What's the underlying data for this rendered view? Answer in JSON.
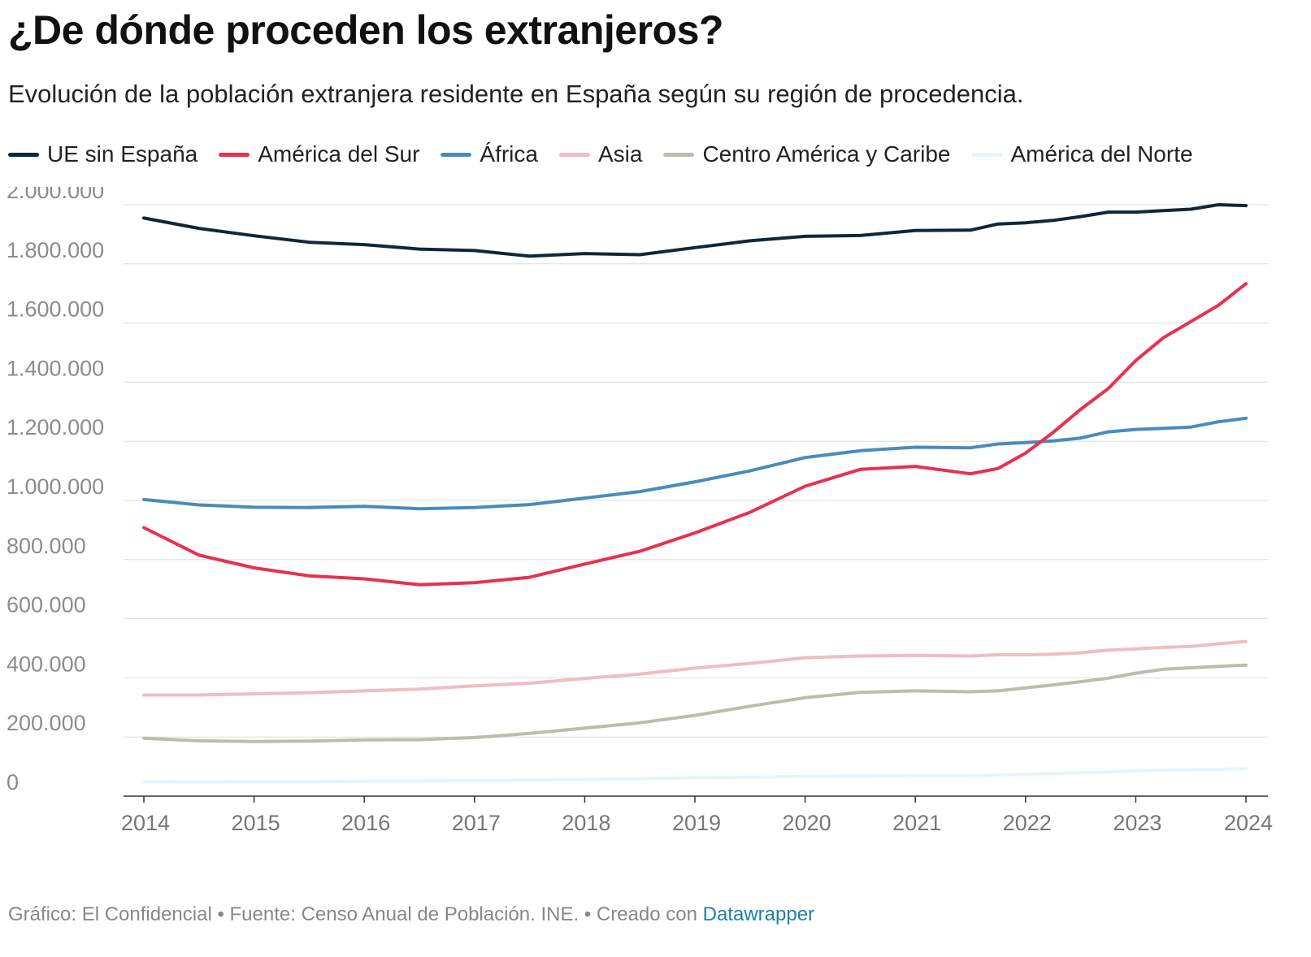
{
  "title": "¿De dónde proceden los extranjeros?",
  "subtitle": "Evolución de la población extranjera residente en España según su región de procedencia.",
  "footer": {
    "text": "Gráfico: El Confidencial • Fuente: Censo Anual de Población. INE. • Creado con ",
    "link": "Datawrapper"
  },
  "chart_data": {
    "type": "line",
    "title": "¿De dónde proceden los extranjeros?",
    "xlabel": "",
    "ylabel": "",
    "ylim": [
      0,
      2000000
    ],
    "xlim": [
      2014,
      2024
    ],
    "yticks": [
      0,
      200000,
      400000,
      600000,
      800000,
      1000000,
      1200000,
      1400000,
      1600000,
      1800000,
      2000000
    ],
    "ytick_labels": [
      "0",
      "200.000",
      "400.000",
      "600.000",
      "800.000",
      "1.000.000",
      "1.200.000",
      "1.400.000",
      "1.600.000",
      "1.800.000",
      "2.000.000"
    ],
    "xticks": [
      "2014",
      "2015",
      "2016",
      "2017",
      "2018",
      "2019",
      "2020",
      "2021",
      "2022",
      "2023",
      "2024"
    ],
    "grid": true,
    "legend_position": "top-left",
    "x": [
      2014,
      2014.5,
      2015,
      2015.5,
      2016,
      2016.5,
      2017,
      2017.5,
      2018,
      2018.5,
      2019,
      2019.5,
      2020,
      2020.5,
      2021,
      2021.5,
      2021.75,
      2022,
      2022.25,
      2022.5,
      2022.75,
      2023,
      2023.25,
      2023.5,
      2023.75,
      2024
    ],
    "series": [
      {
        "name": "UE sin España",
        "color": "#0d2838",
        "values": [
          1955000,
          1920000,
          1895000,
          1873000,
          1865000,
          1850000,
          1845000,
          1826000,
          1835000,
          1831000,
          1855000,
          1878000,
          1893000,
          1896000,
          1913000,
          1914000,
          1935000,
          1939000,
          1947000,
          1960000,
          1975000,
          1975000,
          1980000,
          1985000,
          2000000,
          1997000
        ]
      },
      {
        "name": "América del Sur",
        "color": "#e8304f",
        "values": [
          908000,
          815000,
          772000,
          745000,
          735000,
          715000,
          722000,
          740000,
          785000,
          828000,
          890000,
          960000,
          1048000,
          1105000,
          1115000,
          1090000,
          1108000,
          1160000,
          1230000,
          1308000,
          1378000,
          1473000,
          1550000,
          1605000,
          1660000,
          1733000
        ]
      },
      {
        "name": "África",
        "color": "#4a8bbd",
        "values": [
          1003000,
          985000,
          977000,
          976000,
          980000,
          972000,
          976000,
          986000,
          1008000,
          1030000,
          1063000,
          1100000,
          1145000,
          1168000,
          1180000,
          1178000,
          1191000,
          1196000,
          1201000,
          1211000,
          1232000,
          1240000,
          1244000,
          1248000,
          1266000,
          1278000
        ]
      },
      {
        "name": "Asia",
        "color": "#f0bcc5",
        "values": [
          342000,
          342000,
          346000,
          350000,
          356000,
          362000,
          373000,
          382000,
          398000,
          413000,
          433000,
          449000,
          468000,
          474000,
          476000,
          474000,
          478000,
          478000,
          480000,
          485000,
          494000,
          498000,
          503000,
          506000,
          515000,
          523000
        ]
      },
      {
        "name": "Centro América y Caribe",
        "color": "#bebbb0",
        "values": [
          196000,
          187000,
          185000,
          186000,
          190000,
          191000,
          198000,
          212000,
          230000,
          248000,
          273000,
          304000,
          333000,
          351000,
          356000,
          353000,
          356000,
          366000,
          376000,
          387000,
          399000,
          416000,
          429000,
          434000,
          439000,
          443000
        ]
      },
      {
        "name": "América del Norte",
        "color": "#e8f4fc",
        "values": [
          49000,
          48000,
          49000,
          49000,
          50000,
          51000,
          53000,
          54000,
          57000,
          59000,
          62000,
          64000,
          67000,
          68000,
          69000,
          69000,
          71000,
          74000,
          76000,
          79000,
          82000,
          86000,
          88000,
          89000,
          90000,
          93000
        ]
      }
    ]
  }
}
